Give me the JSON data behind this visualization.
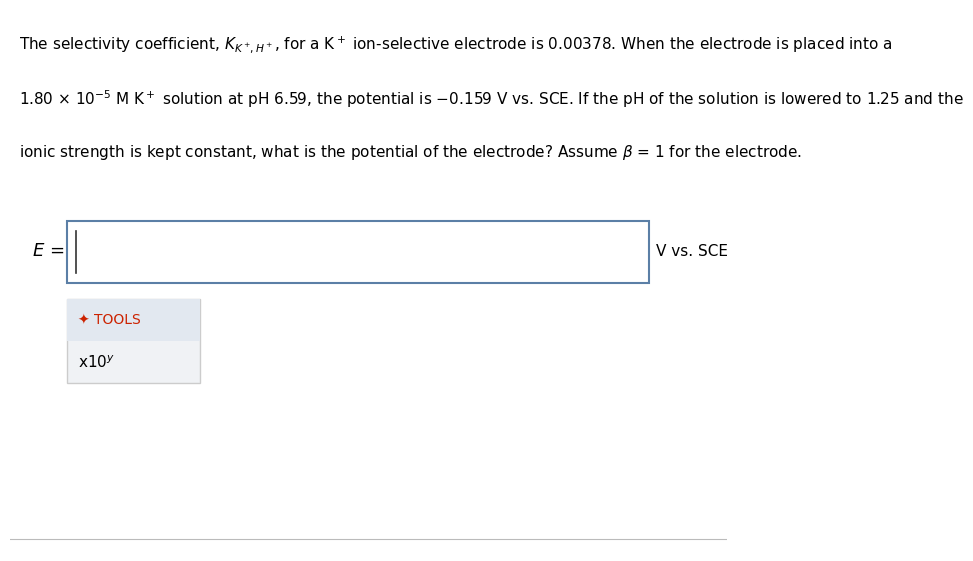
{
  "bg_color": "#ffffff",
  "text_color": "#000000",
  "line1_text": "The selectivity coefficient, $K_{K^+\\!,H^+}$, for a K$^+$ ion-selective electrode is 0.00378. When the electrode is placed into a",
  "line2_text": "1.80 $\\times$ 10$^{-5}$ M K$^+$ solution at pH 6.59, the potential is $-$0.159 V vs. SCE. If the pH of the solution is lowered to 1.25 and the",
  "line3_text": "ionic strength is kept constant, what is the potential of the electrode? Assume $\\beta$ = 1 for the electrode.",
  "label_E": "$E$ =",
  "label_vsce": "V vs. SCE",
  "tools_label": "✦ TOOLS",
  "x10_label": "x10$^y$",
  "input_border_color": "#5b7fa6",
  "tools_box_color": "#f0f2f5",
  "tools_highlight_color": "#e2e8f0",
  "tools_border_color": "#cccccc",
  "separator_color": "#bbbbbb",
  "cursor_color": "#333333",
  "tools_text_color": "#cc2200"
}
